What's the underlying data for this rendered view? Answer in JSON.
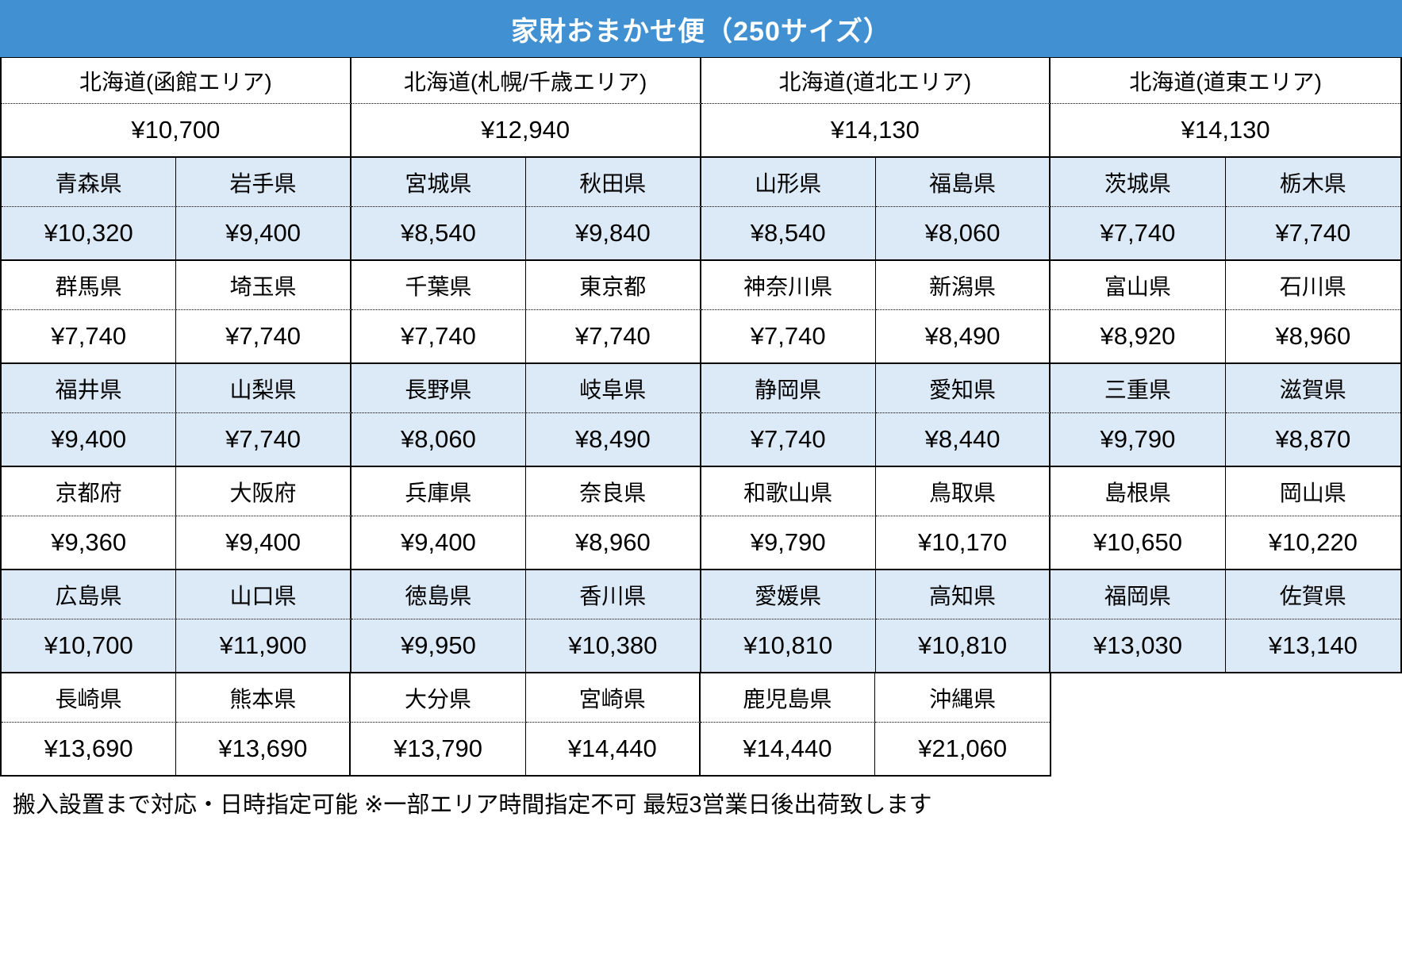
{
  "title": "家財おまかせ便（250サイズ）",
  "colors": {
    "header_bg": "#4190D2",
    "stripe_bg": "#DCE9F6",
    "border": "#000000"
  },
  "hokkaido_areas": [
    {
      "name": "北海道(函館エリア)",
      "price": "¥10,700"
    },
    {
      "name": "北海道(札幌/千歳エリア)",
      "price": "¥12,940"
    },
    {
      "name": "北海道(道北エリア)",
      "price": "¥14,130"
    },
    {
      "name": "北海道(道東エリア)",
      "price": "¥14,130"
    }
  ],
  "prefecture_rows": [
    {
      "shaded": true,
      "cells": [
        {
          "name": "青森県",
          "price": "¥10,320"
        },
        {
          "name": "岩手県",
          "price": "¥9,400"
        },
        {
          "name": "宮城県",
          "price": "¥8,540"
        },
        {
          "name": "秋田県",
          "price": "¥9,840"
        },
        {
          "name": "山形県",
          "price": "¥8,540"
        },
        {
          "name": "福島県",
          "price": "¥8,060"
        },
        {
          "name": "茨城県",
          "price": "¥7,740"
        },
        {
          "name": "栃木県",
          "price": "¥7,740"
        }
      ]
    },
    {
      "shaded": false,
      "cells": [
        {
          "name": "群馬県",
          "price": "¥7,740"
        },
        {
          "name": "埼玉県",
          "price": "¥7,740"
        },
        {
          "name": "千葉県",
          "price": "¥7,740"
        },
        {
          "name": "東京都",
          "price": "¥7,740"
        },
        {
          "name": "神奈川県",
          "price": "¥7,740"
        },
        {
          "name": "新潟県",
          "price": "¥8,490"
        },
        {
          "name": "富山県",
          "price": "¥8,920"
        },
        {
          "name": "石川県",
          "price": "¥8,960"
        }
      ]
    },
    {
      "shaded": true,
      "cells": [
        {
          "name": "福井県",
          "price": "¥9,400"
        },
        {
          "name": "山梨県",
          "price": "¥7,740"
        },
        {
          "name": "長野県",
          "price": "¥8,060"
        },
        {
          "name": "岐阜県",
          "price": "¥8,490"
        },
        {
          "name": "静岡県",
          "price": "¥7,740"
        },
        {
          "name": "愛知県",
          "price": "¥8,440"
        },
        {
          "name": "三重県",
          "price": "¥9,790"
        },
        {
          "name": "滋賀県",
          "price": "¥8,870"
        }
      ]
    },
    {
      "shaded": false,
      "cells": [
        {
          "name": "京都府",
          "price": "¥9,360"
        },
        {
          "name": "大阪府",
          "price": "¥9,400"
        },
        {
          "name": "兵庫県",
          "price": "¥9,400"
        },
        {
          "name": "奈良県",
          "price": "¥8,960"
        },
        {
          "name": "和歌山県",
          "price": "¥9,790"
        },
        {
          "name": "鳥取県",
          "price": "¥10,170"
        },
        {
          "name": "島根県",
          "price": "¥10,650"
        },
        {
          "name": "岡山県",
          "price": "¥10,220"
        }
      ]
    },
    {
      "shaded": true,
      "cells": [
        {
          "name": "広島県",
          "price": "¥10,700"
        },
        {
          "name": "山口県",
          "price": "¥11,900"
        },
        {
          "name": "徳島県",
          "price": "¥9,950"
        },
        {
          "name": "香川県",
          "price": "¥10,380"
        },
        {
          "name": "愛媛県",
          "price": "¥10,810"
        },
        {
          "name": "高知県",
          "price": "¥10,810"
        },
        {
          "name": "福岡県",
          "price": "¥13,030"
        },
        {
          "name": "佐賀県",
          "price": "¥13,140"
        }
      ]
    },
    {
      "shaded": false,
      "cells": [
        {
          "name": "長崎県",
          "price": "¥13,690"
        },
        {
          "name": "熊本県",
          "price": "¥13,690"
        },
        {
          "name": "大分県",
          "price": "¥13,790"
        },
        {
          "name": "宮崎県",
          "price": "¥14,440"
        },
        {
          "name": "鹿児島県",
          "price": "¥14,440"
        },
        {
          "name": "沖縄県",
          "price": "¥21,060"
        }
      ]
    }
  ],
  "footer_note": "搬入設置まで対応・日時指定可能 ※一部エリア時間指定不可 最短3営業日後出荷致します"
}
